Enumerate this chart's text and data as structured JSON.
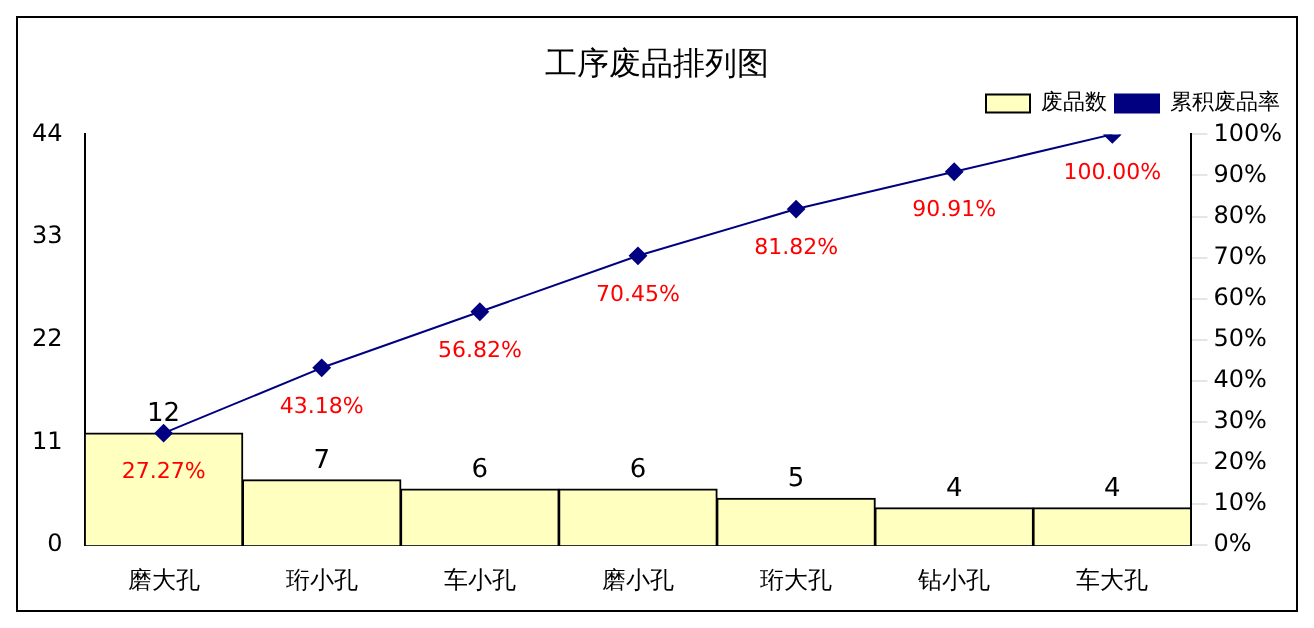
{
  "chart_data": {
    "type": "bar",
    "title": "工序废品排列图",
    "categories": [
      "磨大孔",
      "珩小孔",
      "车小孔",
      "磨小孔",
      "珩大孔",
      "钻小孔",
      "车大孔"
    ],
    "series": [
      {
        "name": "废品数",
        "color": "#ffffc0",
        "values": [
          12,
          7,
          6,
          6,
          5,
          4,
          4
        ]
      },
      {
        "name": "累积废品率",
        "type": "line",
        "axis": "y2",
        "color": "#000080",
        "values": [
          27.27,
          43.18,
          56.82,
          70.45,
          81.82,
          90.91,
          100
        ],
        "value_labels": [
          "27.27%",
          "43.18%",
          "56.82%",
          "70.45%",
          "81.82%",
          "90.91%",
          "100.00%"
        ]
      }
    ],
    "ylim": [
      0,
      44
    ],
    "yticks": [
      0,
      11,
      22,
      33,
      44
    ],
    "y2lim": [
      0,
      100
    ],
    "y2ticks": [
      {
        "value": 0,
        "label": "0%"
      },
      {
        "value": 10,
        "label": "10%"
      },
      {
        "value": 20,
        "label": "20%"
      },
      {
        "value": 30,
        "label": "30%"
      },
      {
        "value": 40,
        "label": "40%"
      },
      {
        "value": 50,
        "label": "50%"
      },
      {
        "value": 60,
        "label": "60%"
      },
      {
        "value": 70,
        "label": "70%"
      },
      {
        "value": 80,
        "label": "80%"
      },
      {
        "value": 90,
        "label": "90%"
      },
      {
        "value": 100,
        "label": "100%"
      }
    ],
    "legend": "top right",
    "marker": "diamond",
    "data_labels": true
  }
}
